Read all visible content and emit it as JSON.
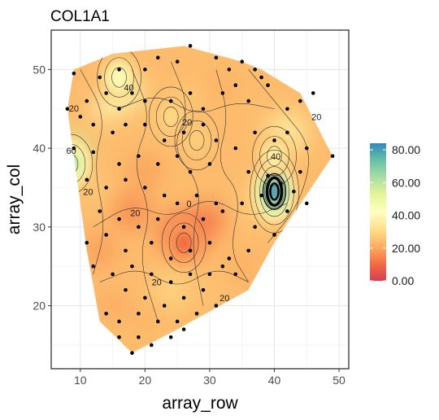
{
  "chart_data": {
    "type": "heatmap",
    "title": "COL1A1",
    "xlabel": "array_row",
    "ylabel": "array_col",
    "xlim": [
      5.5,
      51.5
    ],
    "ylim": [
      12,
      55
    ],
    "xticks": [
      10,
      20,
      30,
      40,
      50
    ],
    "yticks": [
      20,
      30,
      40,
      50
    ],
    "tick_labels": {
      "x": [
        "10",
        "20",
        "30",
        "40",
        "50"
      ],
      "y": [
        "20",
        "30",
        "40",
        "50"
      ]
    },
    "grid": true,
    "legend": {
      "position": "right",
      "type": "colorbar",
      "range": [
        0,
        84
      ],
      "breaks": [
        0,
        20,
        40,
        60,
        80
      ],
      "labels": [
        "0.00",
        "20.00",
        "40.00",
        "60.00",
        "80.00"
      ],
      "colors": [
        "#d53e4f",
        "#f46d43",
        "#fdae61",
        "#fee08b",
        "#ffffbf",
        "#e6f598",
        "#abdda4",
        "#66c2a5",
        "#3288bd"
      ]
    },
    "boundary": [
      [
        9,
        50
      ],
      [
        15,
        52
      ],
      [
        26,
        53
      ],
      [
        35,
        51
      ],
      [
        38,
        50
      ],
      [
        44,
        47
      ],
      [
        49,
        39
      ],
      [
        40,
        28
      ],
      [
        36,
        22
      ],
      [
        25,
        17
      ],
      [
        18,
        14
      ],
      [
        13,
        18
      ],
      [
        11,
        27
      ],
      [
        8,
        45
      ]
    ],
    "hotspots": [
      {
        "x": 40,
        "y": 34.5,
        "peak": 84
      },
      {
        "x": 8.5,
        "y": 38,
        "peak": 64
      },
      {
        "x": 16,
        "y": 49,
        "peak": 46
      },
      {
        "x": 40,
        "y": 39,
        "peak": 38
      },
      {
        "x": 24,
        "y": 44,
        "peak": 30
      },
      {
        "x": 28,
        "y": 41,
        "peak": 28
      },
      {
        "x": 26,
        "y": 28,
        "peak": 8
      }
    ],
    "contour_labels": [
      {
        "x": 17.5,
        "y": 47.7,
        "text": "40"
      },
      {
        "x": 8.6,
        "y": 39.7,
        "text": "60"
      },
      {
        "x": 9.0,
        "y": 45.1,
        "text": "20"
      },
      {
        "x": 11.2,
        "y": 34.5,
        "text": "20"
      },
      {
        "x": 18.5,
        "y": 31.8,
        "text": "20"
      },
      {
        "x": 26.5,
        "y": 43.3,
        "text": "20"
      },
      {
        "x": 26.8,
        "y": 33.0,
        "text": "0"
      },
      {
        "x": 40.2,
        "y": 39.0,
        "text": "40"
      },
      {
        "x": 46.5,
        "y": 44.0,
        "text": "20"
      },
      {
        "x": 21.8,
        "y": 23.0,
        "text": "20"
      },
      {
        "x": 32.3,
        "y": 21.0,
        "text": "20"
      }
    ],
    "points": [
      [
        9,
        49.5
      ],
      [
        13,
        49
      ],
      [
        16,
        50
      ],
      [
        20,
        50
      ],
      [
        22,
        51.5
      ],
      [
        25,
        51
      ],
      [
        27,
        53
      ],
      [
        31,
        51.5
      ],
      [
        33,
        50
      ],
      [
        35,
        51
      ],
      [
        37,
        50
      ],
      [
        38,
        49
      ],
      [
        8,
        45
      ],
      [
        11,
        46
      ],
      [
        14,
        47
      ],
      [
        16,
        45
      ],
      [
        18,
        47
      ],
      [
        20,
        46
      ],
      [
        24,
        46
      ],
      [
        27,
        47
      ],
      [
        29,
        45
      ],
      [
        32,
        47
      ],
      [
        34,
        48
      ],
      [
        36,
        46
      ],
      [
        39,
        48
      ],
      [
        42,
        45
      ],
      [
        44,
        46
      ],
      [
        46,
        47
      ],
      [
        10,
        44
      ],
      [
        12,
        43
      ],
      [
        15,
        42
      ],
      [
        17,
        43
      ],
      [
        20,
        43
      ],
      [
        23,
        41
      ],
      [
        26,
        42
      ],
      [
        29,
        43
      ],
      [
        31,
        41
      ],
      [
        34,
        40
      ],
      [
        37,
        42
      ],
      [
        40,
        41
      ],
      [
        42,
        42
      ],
      [
        45,
        40
      ],
      [
        49,
        39
      ],
      [
        9,
        40
      ],
      [
        12,
        39.5
      ],
      [
        16,
        38
      ],
      [
        19,
        39
      ],
      [
        22,
        38
      ],
      [
        25,
        39
      ],
      [
        27,
        37
      ],
      [
        30,
        38
      ],
      [
        36,
        37
      ],
      [
        39,
        36.5
      ],
      [
        41,
        35.5
      ],
      [
        43,
        34.5
      ],
      [
        44,
        37
      ],
      [
        11,
        36
      ],
      [
        14,
        35
      ],
      [
        17,
        36
      ],
      [
        20,
        35
      ],
      [
        23,
        34
      ],
      [
        25,
        33
      ],
      [
        28,
        34
      ],
      [
        31,
        33
      ],
      [
        35,
        33
      ],
      [
        38,
        34
      ],
      [
        42,
        32
      ],
      [
        45,
        33
      ],
      [
        13,
        32
      ],
      [
        16,
        31
      ],
      [
        19,
        30
      ],
      [
        22,
        31
      ],
      [
        26,
        30
      ],
      [
        29,
        31
      ],
      [
        32,
        32
      ],
      [
        37,
        30
      ],
      [
        40,
        29
      ],
      [
        11,
        28
      ],
      [
        14,
        29
      ],
      [
        17,
        27
      ],
      [
        21,
        28
      ],
      [
        24,
        26
      ],
      [
        27,
        27
      ],
      [
        30,
        28
      ],
      [
        33,
        26
      ],
      [
        36,
        27
      ],
      [
        12,
        25
      ],
      [
        15,
        24
      ],
      [
        18,
        25
      ],
      [
        21,
        24
      ],
      [
        24,
        23
      ],
      [
        27,
        24
      ],
      [
        30,
        24
      ],
      [
        32,
        25
      ],
      [
        34,
        24
      ],
      [
        17,
        22
      ],
      [
        20,
        21
      ],
      [
        23,
        20
      ],
      [
        26,
        21
      ],
      [
        29,
        22
      ],
      [
        14,
        19
      ],
      [
        16,
        18
      ],
      [
        19,
        19
      ],
      [
        22,
        18
      ],
      [
        25,
        18
      ],
      [
        28,
        19
      ],
      [
        31,
        20
      ],
      [
        16,
        16
      ],
      [
        19,
        16
      ],
      [
        21,
        15
      ],
      [
        24,
        16
      ],
      [
        26,
        17
      ],
      [
        18,
        14
      ]
    ]
  }
}
